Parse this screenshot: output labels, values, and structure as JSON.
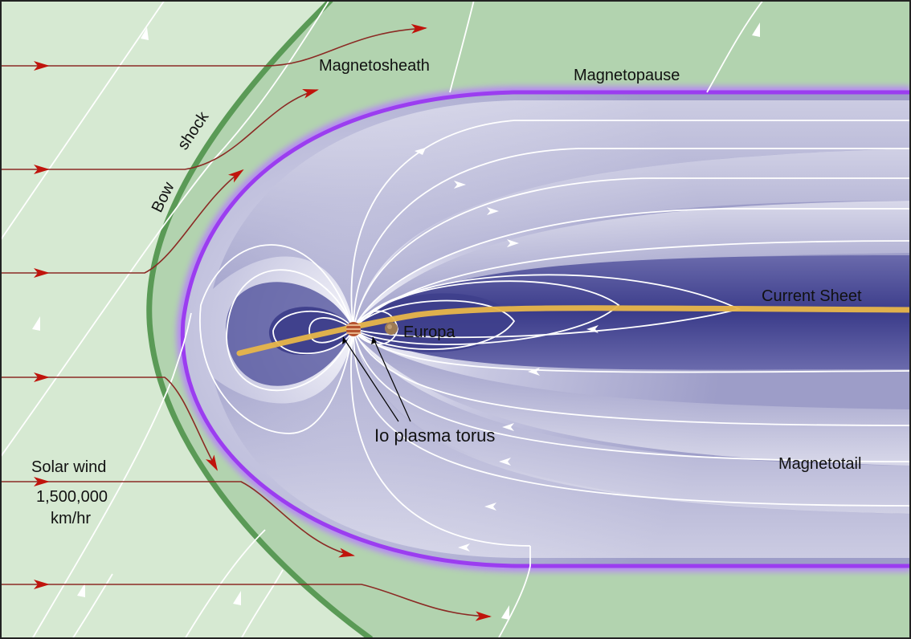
{
  "labels": {
    "magnetosheath": "Magnetosheath",
    "magnetopause": "Magnetopause",
    "bow": "Bow",
    "shock": "shock",
    "current_sheet": "Current Sheet",
    "europa": "Europa",
    "io_plasma_torus": "Io plasma torus",
    "magnetotail": "Magnetotail",
    "solar_wind": "Solar wind",
    "speed_value": "1,500,000",
    "speed_unit": "km/hr"
  },
  "colors": {
    "solar_wind_region": "#d6e9d2",
    "magnetosheath_region": "#b2d3af",
    "bow_shock_line": "#5a9a56",
    "magnetopause_line": "#9b3df0",
    "magnetosphere_dark": "#3e3f8c",
    "magnetosphere_light": "#f4f4fa",
    "current_sheet": "#e8b64a",
    "solar_wind_arrow": "#c0140c",
    "field_line": "#ffffff",
    "jupiter": "#b5522e",
    "europa": "#9d7b54"
  },
  "icons": {
    "planet": "jupiter-icon",
    "moon": "europa-icon"
  }
}
